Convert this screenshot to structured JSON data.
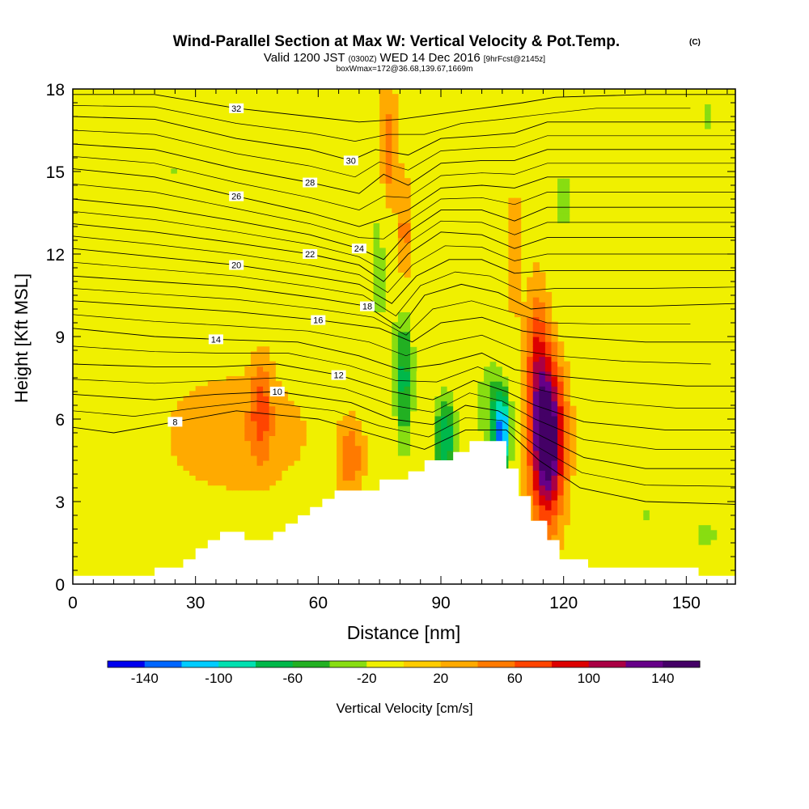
{
  "chart_data": {
    "type": "contour",
    "title": "Wind-Parallel Section at Max W: Vertical Velocity & Pot.Temp.",
    "title_mark": "(C)",
    "subtitle_parts": [
      "Valid 1200 JST",
      "(0300Z)",
      "WED 14 Dec 2016",
      "[9hrFcst@2145z]"
    ],
    "subtitle2": "boxWmax=172@36.68,139.67,1669m",
    "xlabel": "Distance [nm]",
    "ylabel": "Height [Kft MSL]",
    "xlim": [
      0,
      162
    ],
    "ylim": [
      0,
      18
    ],
    "xticks": [
      0,
      30,
      60,
      90,
      120,
      150
    ],
    "yticks": [
      0,
      3,
      6,
      9,
      12,
      15,
      18
    ],
    "colorbar_label": "Vertical Velocity [cm/s]",
    "colorbar_ticks": [
      -140,
      -100,
      -60,
      -20,
      20,
      60,
      100,
      140
    ],
    "colorbar_levels": [
      -160,
      -140,
      -120,
      -100,
      -80,
      -60,
      -40,
      -20,
      0,
      20,
      40,
      60,
      80,
      100,
      120,
      140,
      160
    ],
    "colorbar_colors": [
      "#0000ee",
      "#0066ff",
      "#00ccff",
      "#00e0b0",
      "#00b84a",
      "#22b022",
      "#88dd11",
      "#f0f000",
      "#ffcc00",
      "#ffaa00",
      "#ff7a00",
      "#ff4400",
      "#dd0000",
      "#aa0044",
      "#660088",
      "#440066"
    ],
    "terrain": [
      [
        0,
        0.3
      ],
      [
        20,
        0.3
      ],
      [
        20,
        0.6
      ],
      [
        27,
        0.6
      ],
      [
        27,
        0.9
      ],
      [
        30,
        0.9
      ],
      [
        30,
        1.3
      ],
      [
        33,
        1.3
      ],
      [
        33,
        1.6
      ],
      [
        36,
        1.6
      ],
      [
        36,
        1.9
      ],
      [
        42,
        1.9
      ],
      [
        42,
        1.6
      ],
      [
        49,
        1.6
      ],
      [
        49,
        1.9
      ],
      [
        52,
        1.9
      ],
      [
        52,
        2.2
      ],
      [
        55,
        2.2
      ],
      [
        55,
        2.5
      ],
      [
        58,
        2.5
      ],
      [
        58,
        2.8
      ],
      [
        61,
        2.8
      ],
      [
        61,
        3.1
      ],
      [
        64,
        3.1
      ],
      [
        64,
        3.4
      ],
      [
        75,
        3.4
      ],
      [
        75,
        3.8
      ],
      [
        82,
        3.8
      ],
      [
        82,
        4.1
      ],
      [
        86,
        4.1
      ],
      [
        86,
        4.5
      ],
      [
        93,
        4.5
      ],
      [
        93,
        4.8
      ],
      [
        97,
        4.8
      ],
      [
        97,
        5.2
      ],
      [
        106,
        5.2
      ],
      [
        106,
        4.2
      ],
      [
        109,
        4.2
      ],
      [
        109,
        3.2
      ],
      [
        112,
        3.2
      ],
      [
        112,
        2.3
      ],
      [
        116,
        2.3
      ],
      [
        116,
        1.6
      ],
      [
        119,
        1.6
      ],
      [
        119,
        0.9
      ],
      [
        126,
        0.9
      ],
      [
        126,
        0.6
      ],
      [
        153,
        0.6
      ],
      [
        153,
        0.3
      ],
      [
        162,
        0.3
      ]
    ],
    "w_features": [
      {
        "x": 116,
        "y": 5.3,
        "sx": 4,
        "sy": 2.8,
        "w": 172
      },
      {
        "x": 113.5,
        "y": 8.5,
        "sx": 2.5,
        "sy": 2.5,
        "w": 55
      },
      {
        "x": 105,
        "y": 5.5,
        "sx": 2.2,
        "sy": 1.5,
        "w": -120
      },
      {
        "x": 102,
        "y": 6.5,
        "sx": 4,
        "sy": 2.2,
        "w": -45
      },
      {
        "x": 91,
        "y": 5.3,
        "sx": 3,
        "sy": 1.8,
        "w": -85
      },
      {
        "x": 81,
        "y": 7.5,
        "sx": 2.5,
        "sy": 3,
        "w": -75
      },
      {
        "x": 75,
        "y": 12,
        "sx": 3.5,
        "sy": 4,
        "w": -38
      },
      {
        "x": 77,
        "y": 15.5,
        "sx": 2.2,
        "sy": 2.5,
        "w": 58
      },
      {
        "x": 81,
        "y": 12.5,
        "sx": 1.8,
        "sy": 2.2,
        "w": 45
      },
      {
        "x": 68,
        "y": 4.6,
        "sx": 3,
        "sy": 1.3,
        "w": 50
      },
      {
        "x": 46,
        "y": 6.5,
        "sx": 2.5,
        "sy": 1.8,
        "w": 48
      },
      {
        "x": 40,
        "y": 5.5,
        "sx": 18,
        "sy": 2.2,
        "w": 28
      },
      {
        "x": 25,
        "y": 15,
        "sx": 14,
        "sy": 4,
        "w": -28
      },
      {
        "x": 50,
        "y": 13.5,
        "sx": 10,
        "sy": 3,
        "w": -25
      },
      {
        "x": 5,
        "y": 4.5,
        "sx": 6,
        "sy": 2.5,
        "w": -26
      },
      {
        "x": 120,
        "y": 14,
        "sx": 2.5,
        "sy": 4,
        "w": -32
      },
      {
        "x": 130,
        "y": 8,
        "sx": 3,
        "sy": 3,
        "w": -28
      },
      {
        "x": 95,
        "y": 14,
        "sx": 3,
        "sy": 3,
        "w": -25
      },
      {
        "x": 155,
        "y": 1.8,
        "sx": 7,
        "sy": 1.5,
        "w": -30
      },
      {
        "x": 140,
        "y": 2.5,
        "sx": 6,
        "sy": 1.5,
        "w": -28
      },
      {
        "x": 155,
        "y": 17,
        "sx": 4,
        "sy": 1.5,
        "w": -30
      },
      {
        "x": 108,
        "y": 12,
        "sx": 2,
        "sy": 2.5,
        "w": 28
      }
    ],
    "theta_lines": [
      {
        "v": 8,
        "pts": [
          [
            0,
            5.7
          ],
          [
            10,
            5.5
          ],
          [
            25,
            5.9
          ],
          [
            40,
            6.3
          ],
          [
            60,
            6.0
          ],
          [
            72,
            5.5
          ],
          [
            86,
            4.9
          ],
          [
            96,
            5.6
          ],
          [
            106,
            5.6
          ],
          [
            114,
            4.5
          ],
          [
            124,
            3.5
          ],
          [
            140,
            3.0
          ],
          [
            162,
            2.9
          ]
        ]
      },
      {
        "v": 10,
        "pts": [
          [
            0,
            6.9
          ],
          [
            20,
            6.7
          ],
          [
            35,
            6.9
          ],
          [
            50,
            7.0
          ],
          [
            68,
            6.6
          ],
          [
            78,
            6.0
          ],
          [
            88,
            5.8
          ],
          [
            96,
            6.5
          ],
          [
            104,
            6.3
          ],
          [
            113,
            5.5
          ],
          [
            125,
            4.6
          ],
          [
            140,
            4.2
          ],
          [
            162,
            4.2
          ]
        ]
      },
      {
        "v": 12,
        "pts": [
          [
            0,
            8.0
          ],
          [
            20,
            7.9
          ],
          [
            35,
            7.9
          ],
          [
            50,
            8.0
          ],
          [
            65,
            7.6
          ],
          [
            78,
            7.0
          ],
          [
            88,
            6.7
          ],
          [
            98,
            7.4
          ],
          [
            106,
            7.0
          ],
          [
            113,
            6.5
          ],
          [
            125,
            5.9
          ],
          [
            145,
            5.6
          ],
          [
            162,
            5.6
          ]
        ]
      },
      {
        "v": 14,
        "pts": [
          [
            0,
            9.3
          ],
          [
            20,
            9.0
          ],
          [
            35,
            8.9
          ],
          [
            55,
            8.8
          ],
          [
            70,
            8.3
          ],
          [
            80,
            7.8
          ],
          [
            90,
            8.0
          ],
          [
            100,
            8.4
          ],
          [
            108,
            7.8
          ],
          [
            116,
            7.6
          ],
          [
            130,
            7.4
          ],
          [
            150,
            7.2
          ],
          [
            162,
            7.2
          ]
        ]
      },
      {
        "v": 16,
        "pts": [
          [
            0,
            10.3
          ],
          [
            20,
            10.1
          ],
          [
            40,
            9.9
          ],
          [
            60,
            9.6
          ],
          [
            75,
            9.3
          ],
          [
            83,
            8.8
          ],
          [
            90,
            9.5
          ],
          [
            100,
            9.7
          ],
          [
            110,
            9.2
          ],
          [
            120,
            9.0
          ],
          [
            140,
            8.8
          ],
          [
            162,
            8.8
          ]
        ]
      },
      {
        "v": 18,
        "pts": [
          [
            0,
            11.2
          ],
          [
            20,
            11.0
          ],
          [
            40,
            10.8
          ],
          [
            60,
            10.4
          ],
          [
            72,
            10.1
          ],
          [
            80,
            9.3
          ],
          [
            86,
            10.5
          ],
          [
            95,
            10.9
          ],
          [
            104,
            10.6
          ],
          [
            112,
            10.0
          ],
          [
            120,
            10.1
          ],
          [
            140,
            10.1
          ],
          [
            162,
            10.2
          ]
        ]
      },
      {
        "v": 20,
        "pts": [
          [
            0,
            12.2
          ],
          [
            20,
            11.9
          ],
          [
            40,
            11.6
          ],
          [
            58,
            11.2
          ],
          [
            70,
            10.9
          ],
          [
            78,
            10.2
          ],
          [
            84,
            11.2
          ],
          [
            92,
            11.8
          ],
          [
            100,
            11.8
          ],
          [
            108,
            11.3
          ],
          [
            116,
            11.4
          ],
          [
            140,
            11.4
          ],
          [
            162,
            11.4
          ]
        ]
      },
      {
        "v": 22,
        "pts": [
          [
            0,
            13.1
          ],
          [
            20,
            12.8
          ],
          [
            40,
            12.4
          ],
          [
            58,
            12.0
          ],
          [
            70,
            11.6
          ],
          [
            76,
            11.0
          ],
          [
            82,
            12.0
          ],
          [
            90,
            12.8
          ],
          [
            100,
            12.7
          ],
          [
            108,
            12.2
          ],
          [
            116,
            12.6
          ],
          [
            140,
            12.6
          ],
          [
            162,
            12.6
          ]
        ]
      },
      {
        "v": 24,
        "pts": [
          [
            0,
            14.0
          ],
          [
            20,
            13.7
          ],
          [
            40,
            13.2
          ],
          [
            58,
            12.7
          ],
          [
            70,
            12.2
          ],
          [
            76,
            11.8
          ],
          [
            82,
            12.8
          ],
          [
            90,
            13.6
          ],
          [
            100,
            13.6
          ],
          [
            108,
            13.2
          ],
          [
            116,
            13.7
          ],
          [
            140,
            13.7
          ],
          [
            162,
            13.7
          ]
        ]
      },
      {
        "v": 26,
        "pts": [
          [
            0,
            15.1
          ],
          [
            20,
            14.8
          ],
          [
            40,
            14.1
          ],
          [
            58,
            13.5
          ],
          [
            70,
            13.0
          ],
          [
            76,
            13.3
          ],
          [
            82,
            13.6
          ],
          [
            90,
            14.4
          ],
          [
            100,
            14.5
          ],
          [
            108,
            14.4
          ],
          [
            116,
            14.8
          ],
          [
            140,
            14.8
          ],
          [
            162,
            14.8
          ]
        ]
      },
      {
        "v": 28,
        "pts": [
          [
            0,
            16.0
          ],
          [
            20,
            15.8
          ],
          [
            40,
            15.1
          ],
          [
            58,
            14.6
          ],
          [
            70,
            14.2
          ],
          [
            76,
            14.9
          ],
          [
            82,
            14.5
          ],
          [
            90,
            15.3
          ],
          [
            100,
            15.4
          ],
          [
            108,
            15.4
          ],
          [
            116,
            15.8
          ],
          [
            140,
            15.8
          ],
          [
            162,
            15.8
          ]
        ]
      },
      {
        "v": 30,
        "pts": [
          [
            0,
            17.0
          ],
          [
            20,
            16.9
          ],
          [
            40,
            16.2
          ],
          [
            58,
            15.8
          ],
          [
            68,
            15.4
          ],
          [
            74,
            15.8
          ],
          [
            82,
            15.6
          ],
          [
            90,
            16.2
          ],
          [
            100,
            16.3
          ],
          [
            108,
            16.4
          ],
          [
            116,
            16.8
          ],
          [
            140,
            16.8
          ],
          [
            162,
            16.8
          ]
        ]
      },
      {
        "v": 32,
        "pts": [
          [
            0,
            17.8
          ],
          [
            20,
            17.8
          ],
          [
            40,
            17.3
          ],
          [
            58,
            17.0
          ],
          [
            70,
            16.8
          ],
          [
            80,
            16.9
          ],
          [
            90,
            17.1
          ],
          [
            100,
            17.3
          ],
          [
            110,
            17.5
          ],
          [
            118,
            17.7
          ],
          [
            140,
            17.8
          ],
          [
            162,
            17.8
          ]
        ]
      }
    ]
  }
}
